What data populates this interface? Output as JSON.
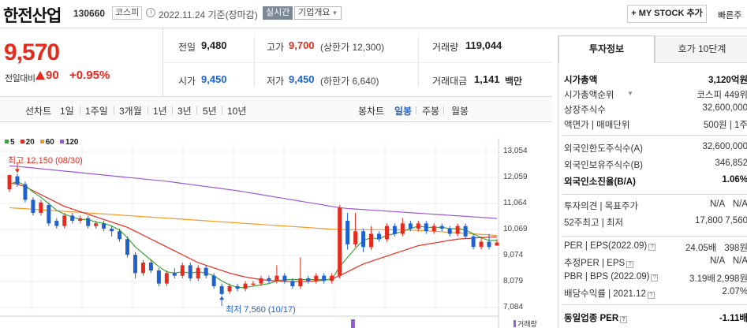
{
  "header": {
    "name": "한전산업",
    "code": "130660",
    "market": "코스피",
    "date": "2022.11.24 기준(장마감)",
    "realtime_label": "실시간",
    "company_overview_label": "기업개요",
    "mystock_label": "+ MY STOCK 추가",
    "quick_label": "빠른주"
  },
  "price": {
    "current": "9,570",
    "vs_label": "전일대비",
    "change": "90",
    "rate": "+0.95%"
  },
  "quote": {
    "prev_label": "전일",
    "prev": "9,480",
    "high_label": "고가",
    "high": "9,700",
    "upper_limit": "(상한가 12,300)",
    "volume_label": "거래량",
    "volume": "119,044",
    "open_label": "시가",
    "open": "9,450",
    "low_label": "저가",
    "low": "9,450",
    "lower_limit": "(하한가 6,640)",
    "amount_label": "거래대금",
    "amount": "1,141",
    "amount_unit": "백만"
  },
  "tabs": {
    "line_chart": "선차트",
    "periods": [
      "1일",
      "1주일",
      "3개월",
      "1년",
      "3년",
      "5년",
      "10년"
    ],
    "candle_chart": "봉차트",
    "candle_periods": [
      "일봉",
      "주봉",
      "월봉"
    ]
  },
  "chart": {
    "legend": [
      {
        "label": "5",
        "color": "#3ea33a"
      },
      {
        "label": "20",
        "color": "#e52b1e"
      },
      {
        "label": "60",
        "color": "#f29a26"
      },
      {
        "label": "120",
        "color": "#9b59d6"
      }
    ],
    "y_ticks": [
      "13,054",
      "12,059",
      "11,064",
      "10,069",
      "9,074",
      "8,079",
      "7,084"
    ],
    "high_note": "최고 12,150 (08/30)",
    "low_note": "최저 7,560 (10/17)",
    "volume_label": "거래량",
    "up_color": "#e52b1e",
    "down_color": "#1e62d0"
  },
  "chart_data": {
    "type": "candlestick",
    "ylim": [
      7084,
      13054
    ],
    "y_ticks": [
      13054,
      12059,
      11064,
      10069,
      9074,
      8079,
      7084
    ],
    "candles": [
      {
        "o": 11600,
        "c": 12150,
        "h": 12150,
        "l": 11500
      },
      {
        "o": 12100,
        "c": 11800,
        "h": 12200,
        "l": 11700
      },
      {
        "o": 11800,
        "c": 11200,
        "h": 11900,
        "l": 11100
      },
      {
        "o": 11200,
        "c": 10700,
        "h": 11300,
        "l": 10600
      },
      {
        "o": 10700,
        "c": 11100,
        "h": 11200,
        "l": 10600
      },
      {
        "o": 11000,
        "c": 10300,
        "h": 11100,
        "l": 10200
      },
      {
        "o": 10400,
        "c": 10200,
        "h": 10500,
        "l": 10100
      },
      {
        "o": 10200,
        "c": 10600,
        "h": 10700,
        "l": 10100
      },
      {
        "o": 10600,
        "c": 10400,
        "h": 10700,
        "l": 10300
      },
      {
        "o": 10400,
        "c": 10500,
        "h": 10600,
        "l": 10300
      },
      {
        "o": 10500,
        "c": 10200,
        "h": 10600,
        "l": 10100
      },
      {
        "o": 10200,
        "c": 10300,
        "h": 10400,
        "l": 10100
      },
      {
        "o": 10300,
        "c": 10100,
        "h": 10400,
        "l": 10000
      },
      {
        "o": 10100,
        "c": 10000,
        "h": 10200,
        "l": 9800
      },
      {
        "o": 10000,
        "c": 9700,
        "h": 10100,
        "l": 9600
      },
      {
        "o": 9700,
        "c": 9100,
        "h": 9800,
        "l": 9000
      },
      {
        "o": 9100,
        "c": 8400,
        "h": 9200,
        "l": 8200
      },
      {
        "o": 8400,
        "c": 8800,
        "h": 8900,
        "l": 8300
      },
      {
        "o": 8800,
        "c": 8500,
        "h": 8900,
        "l": 8400
      },
      {
        "o": 8500,
        "c": 8000,
        "h": 8600,
        "l": 7900
      },
      {
        "o": 8000,
        "c": 8400,
        "h": 8500,
        "l": 7900
      },
      {
        "o": 8400,
        "c": 8300,
        "h": 8600,
        "l": 8200
      },
      {
        "o": 8300,
        "c": 8700,
        "h": 8800,
        "l": 8200
      },
      {
        "o": 8700,
        "c": 8200,
        "h": 8800,
        "l": 8100
      },
      {
        "o": 8200,
        "c": 8600,
        "h": 8700,
        "l": 8100
      },
      {
        "o": 8600,
        "c": 8300,
        "h": 8700,
        "l": 8200
      },
      {
        "o": 8300,
        "c": 7900,
        "h": 8400,
        "l": 7800
      },
      {
        "o": 7900,
        "c": 7600,
        "h": 8000,
        "l": 7560
      },
      {
        "o": 7700,
        "c": 7900,
        "h": 8000,
        "l": 7600
      },
      {
        "o": 7900,
        "c": 7800,
        "h": 8000,
        "l": 7700
      },
      {
        "o": 7800,
        "c": 8000,
        "h": 8100,
        "l": 7700
      },
      {
        "o": 8000,
        "c": 8000,
        "h": 8100,
        "l": 7900
      },
      {
        "o": 8000,
        "c": 8200,
        "h": 8300,
        "l": 7900
      },
      {
        "o": 8200,
        "c": 8100,
        "h": 8300,
        "l": 8000
      },
      {
        "o": 8100,
        "c": 8300,
        "h": 8700,
        "l": 8000
      },
      {
        "o": 8300,
        "c": 8100,
        "h": 8400,
        "l": 8000
      },
      {
        "o": 8100,
        "c": 7900,
        "h": 8200,
        "l": 7800
      },
      {
        "o": 7900,
        "c": 8200,
        "h": 9000,
        "l": 7800
      },
      {
        "o": 8200,
        "c": 8100,
        "h": 8300,
        "l": 8000
      },
      {
        "o": 8100,
        "c": 8300,
        "h": 8400,
        "l": 8000
      },
      {
        "o": 8300,
        "c": 8100,
        "h": 8400,
        "l": 8000
      },
      {
        "o": 8100,
        "c": 8300,
        "h": 8400,
        "l": 8000
      },
      {
        "o": 8300,
        "c": 10900,
        "h": 11000,
        "l": 8200
      },
      {
        "o": 10400,
        "c": 9500,
        "h": 10700,
        "l": 9300
      },
      {
        "o": 9500,
        "c": 10000,
        "h": 10700,
        "l": 9400
      },
      {
        "o": 10000,
        "c": 9400,
        "h": 10100,
        "l": 9200
      },
      {
        "o": 9400,
        "c": 9900,
        "h": 10200,
        "l": 9300
      },
      {
        "o": 9900,
        "c": 9700,
        "h": 10000,
        "l": 9600
      },
      {
        "o": 9700,
        "c": 10200,
        "h": 10300,
        "l": 9600
      },
      {
        "o": 10200,
        "c": 9900,
        "h": 10300,
        "l": 9800
      },
      {
        "o": 9900,
        "c": 10300,
        "h": 10500,
        "l": 9800
      },
      {
        "o": 10300,
        "c": 10100,
        "h": 10400,
        "l": 10000
      },
      {
        "o": 10100,
        "c": 10300,
        "h": 10400,
        "l": 10000
      },
      {
        "o": 10300,
        "c": 10000,
        "h": 10400,
        "l": 9900
      },
      {
        "o": 10000,
        "c": 10200,
        "h": 10300,
        "l": 9900
      },
      {
        "o": 10200,
        "c": 10100,
        "h": 10300,
        "l": 10000
      },
      {
        "o": 10100,
        "c": 9900,
        "h": 10200,
        "l": 9800
      },
      {
        "o": 9900,
        "c": 10200,
        "h": 10300,
        "l": 9800
      },
      {
        "o": 10200,
        "c": 9800,
        "h": 10300,
        "l": 9700
      },
      {
        "o": 9800,
        "c": 9400,
        "h": 9900,
        "l": 9300
      },
      {
        "o": 9400,
        "c": 9600,
        "h": 9800,
        "l": 9300
      },
      {
        "o": 9600,
        "c": 9400,
        "h": 9900,
        "l": 9300
      },
      {
        "o": 9450,
        "c": 9570,
        "h": 9700,
        "l": 9450
      }
    ],
    "ma5": [
      11800,
      11900,
      11750,
      11500,
      11300,
      11050,
      10800,
      10650,
      10550,
      10450,
      10450,
      10350,
      10300,
      10200,
      10050,
      9750,
      9400,
      9150,
      8900,
      8650,
      8450,
      8400,
      8450,
      8400,
      8450,
      8400,
      8300,
      8100,
      7950,
      7850,
      7850,
      7900,
      7950,
      8000,
      8100,
      8150,
      8150,
      8150,
      8150,
      8150,
      8150,
      8150,
      8650,
      9000,
      9350,
      9650,
      9750,
      9700,
      9850,
      9900,
      10000,
      10100,
      10200,
      10150,
      10150,
      10150,
      10100,
      10100,
      10050,
      9900,
      9750,
      9650,
      9650
    ],
    "ma20": [
      11850,
      11800,
      11700,
      11550,
      11400,
      11250,
      11100,
      10950,
      10850,
      10750,
      10650,
      10550,
      10450,
      10350,
      10250,
      10150,
      10000,
      9850,
      9700,
      9550,
      9400,
      9250,
      9100,
      8950,
      8800,
      8700,
      8600,
      8500,
      8400,
      8320,
      8250,
      8200,
      8150,
      8120,
      8100,
      8080,
      8070,
      8070,
      8080,
      8100,
      8130,
      8180,
      8300,
      8450,
      8600,
      8750,
      8850,
      8950,
      9050,
      9150,
      9250,
      9350,
      9450,
      9500,
      9550,
      9600,
      9650,
      9700,
      9720,
      9740,
      9760,
      9770,
      9780
    ],
    "ma60": [
      10900,
      10880,
      10860,
      10840,
      10820,
      10800,
      10780,
      10760,
      10740,
      10720,
      10700,
      10680,
      10660,
      10640,
      10620,
      10600,
      10580,
      10560,
      10540,
      10520,
      10500,
      10480,
      10460,
      10440,
      10420,
      10400,
      10380,
      10360,
      10340,
      10320,
      10300,
      10280,
      10260,
      10240,
      10220,
      10200,
      10180,
      10160,
      10140,
      10120,
      10100,
      10080,
      10070,
      10060,
      10060,
      10060,
      10060,
      10060,
      10060,
      10060,
      10050,
      10040,
      10030,
      10020,
      10000,
      9980,
      9960,
      9940,
      9920,
      9900,
      9880,
      9860,
      9840
    ],
    "ma120": [
      12500,
      12480,
      12450,
      12420,
      12390,
      12360,
      12330,
      12300,
      12270,
      12240,
      12210,
      12180,
      12150,
      12120,
      12090,
      12060,
      12030,
      12000,
      11970,
      11940,
      11910,
      11870,
      11830,
      11790,
      11750,
      11710,
      11670,
      11630,
      11590,
      11550,
      11500,
      11450,
      11400,
      11350,
      11300,
      11250,
      11200,
      11150,
      11100,
      11050,
      11000,
      10950,
      10900,
      10870,
      10850,
      10830,
      10810,
      10790,
      10770,
      10750,
      10730,
      10710,
      10690,
      10670,
      10650,
      10630,
      10610,
      10590,
      10570,
      10550,
      10530,
      10510,
      10490
    ]
  },
  "panel": {
    "tab_invest": "투자정보",
    "tab_orderbook": "호가 10단계",
    "rows": [
      {
        "label": "시가총액",
        "value": "3,120억원",
        "bold": true
      },
      {
        "label": "시가총액순위",
        "value": "코스피 449위",
        "dd": true
      },
      {
        "label": "상장주식수",
        "value": "32,600,000"
      },
      {
        "label": "액면가 | 매매단위",
        "value": "500원 | 1주"
      }
    ],
    "rows2": [
      {
        "label": "외국인한도주식수(A)",
        "value": "32,600,000"
      },
      {
        "label": "외국인보유주식수(B)",
        "value": "346,852"
      },
      {
        "label": "외국인소진율(B/A)",
        "value": "1.06%",
        "bold": true
      }
    ],
    "opinion_label": "투자의견",
    "target_label": "목표주가",
    "opinion_val": "N/A",
    "target_val": "N/A",
    "wk52_label": "52주최고 | 최저",
    "wk52_high": "17,800",
    "wk52_low": "7,560",
    "per_label": "PER | EPS(2022.09)",
    "per_val": "24.05배",
    "eps_val": "398원",
    "est_label": "추정PER | EPS",
    "est_per": "N/A",
    "est_eps": "N/A",
    "pbr_label": "PBR | BPS (2022.09)",
    "pbr_val": "3.19배",
    "bps_val": "2,998원",
    "div_label": "배당수익률 | 2021.12",
    "div_val": "2.07%",
    "sector_label": "동일업종 PER",
    "sector_val": "-1.11배"
  }
}
